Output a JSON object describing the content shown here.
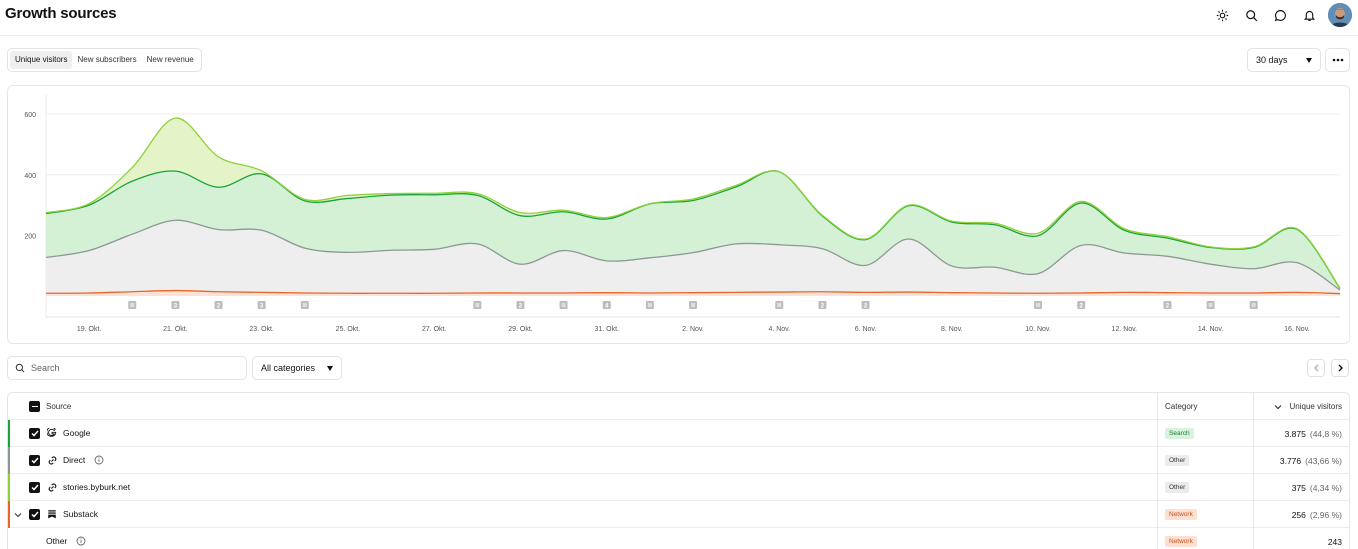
{
  "header": {
    "title": "Growth sources"
  },
  "top_icons": [
    "sun-icon",
    "search-icon",
    "message-icon",
    "bell-icon"
  ],
  "metric_tabs": [
    {
      "label": "Unique visitors",
      "active": true
    },
    {
      "label": "New subscribers",
      "active": false
    },
    {
      "label": "New revenue",
      "active": false
    }
  ],
  "period": {
    "value": "30 days"
  },
  "chart_data": {
    "type": "area",
    "stacked": true,
    "x": [
      "18. Okt.",
      "19. Okt.",
      "20. Okt.",
      "21. Okt.",
      "22. Okt.",
      "23. Okt.",
      "24. Okt.",
      "25. Okt.",
      "26. Okt.",
      "27. Okt.",
      "28. Okt.",
      "29. Okt.",
      "30. Okt.",
      "31. Okt.",
      "1. Nov.",
      "2. Nov.",
      "3. Nov.",
      "4. Nov.",
      "5. Nov.",
      "6. Nov.",
      "7. Nov.",
      "8. Nov.",
      "9. Nov.",
      "10. Nov.",
      "11. Nov.",
      "12. Nov.",
      "13. Nov.",
      "14. Nov.",
      "15. Nov.",
      "16. Nov.",
      "17. Nov."
    ],
    "xtick_labels": [
      "19. Okt.",
      "21. Okt.",
      "23. Okt.",
      "25. Okt.",
      "27. Okt.",
      "29. Okt.",
      "31. Okt.",
      "2. Nov.",
      "4. Nov.",
      "6. Nov.",
      "8. Nov.",
      "10. Nov.",
      "12. Nov.",
      "14. Nov.",
      "16. Nov."
    ],
    "yticks": [
      200,
      400,
      600
    ],
    "ylim": [
      0,
      660
    ],
    "grid": true,
    "series": [
      {
        "name": "Substack",
        "color": "#e8662a",
        "values": [
          9,
          10,
          14,
          18,
          14,
          12,
          10,
          9,
          9,
          9,
          10,
          10,
          10,
          11,
          10,
          11,
          12,
          13,
          14,
          12,
          13,
          11,
          10,
          9,
          10,
          12,
          11,
          10,
          10,
          12,
          8
        ]
      },
      {
        "name": "Direct",
        "color": "#8d9895",
        "values": [
          118,
          140,
          190,
          232,
          205,
          205,
          148,
          135,
          142,
          145,
          162,
          95,
          140,
          105,
          116,
          132,
          160,
          156,
          142,
          89,
          175,
          88,
          85,
          65,
          157,
          130,
          120,
          95,
          80,
          98,
          12
        ]
      },
      {
        "name": "Google",
        "color": "#1aa33a",
        "values": [
          145,
          150,
          175,
          162,
          140,
          186,
          156,
          178,
          182,
          180,
          160,
          160,
          128,
          138,
          178,
          172,
          188,
          241,
          108,
          85,
          110,
          145,
          140,
          125,
          140,
          75,
          60,
          55,
          70,
          110,
          5
        ]
      },
      {
        "name": "stories.byburk.net",
        "color": "#8ed13a",
        "values": [
          3,
          5,
          45,
          175,
          100,
          10,
          5,
          10,
          5,
          5,
          6,
          10,
          5,
          5,
          1,
          5,
          5,
          0,
          2,
          2,
          2,
          3,
          5,
          8,
          5,
          5,
          5,
          2,
          2,
          2,
          1
        ]
      }
    ],
    "annotation_markers": [
      {
        "x": "20. Okt.",
        "label": ""
      },
      {
        "x": "21. Okt.",
        "label": "3"
      },
      {
        "x": "22. Okt.",
        "label": "2"
      },
      {
        "x": "23. Okt.",
        "label": "3"
      },
      {
        "x": "24. Okt.",
        "label": ""
      },
      {
        "x": "28. Okt.",
        "label": ""
      },
      {
        "x": "29. Okt.",
        "label": "2"
      },
      {
        "x": "30. Okt.",
        "label": ""
      },
      {
        "x": "31. Okt.",
        "label": "4"
      },
      {
        "x": "1. Nov.",
        "label": ""
      },
      {
        "x": "2. Nov.",
        "label": ""
      },
      {
        "x": "4. Nov.",
        "label": ""
      },
      {
        "x": "5. Nov.",
        "label": "2"
      },
      {
        "x": "6. Nov.",
        "label": "2"
      },
      {
        "x": "10. Nov.",
        "label": ""
      },
      {
        "x": "11. Nov.",
        "label": "2"
      },
      {
        "x": "13. Nov.",
        "label": "2"
      },
      {
        "x": "14. Nov.",
        "label": ""
      },
      {
        "x": "15. Nov.",
        "label": ""
      }
    ]
  },
  "filters": {
    "search_placeholder": "Search",
    "category": "All categories"
  },
  "table": {
    "headers": {
      "source": "Source",
      "category": "Category",
      "metric": "Unique visitors"
    },
    "rows": [
      {
        "source": "Google",
        "icon": "google-icon",
        "accent": "#1aa33a",
        "category": "Search",
        "badge_bg": "#d8f3dd",
        "badge_fg": "#1d7a33",
        "value": "3.875",
        "pct": "(44,8 %)",
        "checked": true,
        "info": false,
        "expander": false,
        "child": false
      },
      {
        "source": "Direct",
        "icon": "link-icon",
        "accent": "#8d9895",
        "category": "Other",
        "badge_bg": "#ececec",
        "badge_fg": "#333333",
        "value": "3.776",
        "pct": "(43,66 %)",
        "checked": true,
        "info": true,
        "expander": false,
        "child": false
      },
      {
        "source": "stories.byburk.net",
        "icon": "link-icon",
        "accent": "#8ed13a",
        "category": "Other",
        "badge_bg": "#ececec",
        "badge_fg": "#333333",
        "value": "375",
        "pct": "(4,34 %)",
        "checked": true,
        "info": false,
        "expander": false,
        "child": false
      },
      {
        "source": "Substack",
        "icon": "substack-icon",
        "accent": "#e8662a",
        "category": "Network",
        "badge_bg": "#fde0d2",
        "badge_fg": "#c7501c",
        "value": "256",
        "pct": "(2,96 %)",
        "checked": true,
        "info": false,
        "expander": true,
        "child": false
      },
      {
        "source": "Other",
        "icon": "",
        "accent": "",
        "category": "Network",
        "badge_bg": "#fde0d2",
        "badge_fg": "#c7501c",
        "value": "243",
        "pct": "",
        "checked": false,
        "info": true,
        "expander": false,
        "child": true
      }
    ]
  }
}
